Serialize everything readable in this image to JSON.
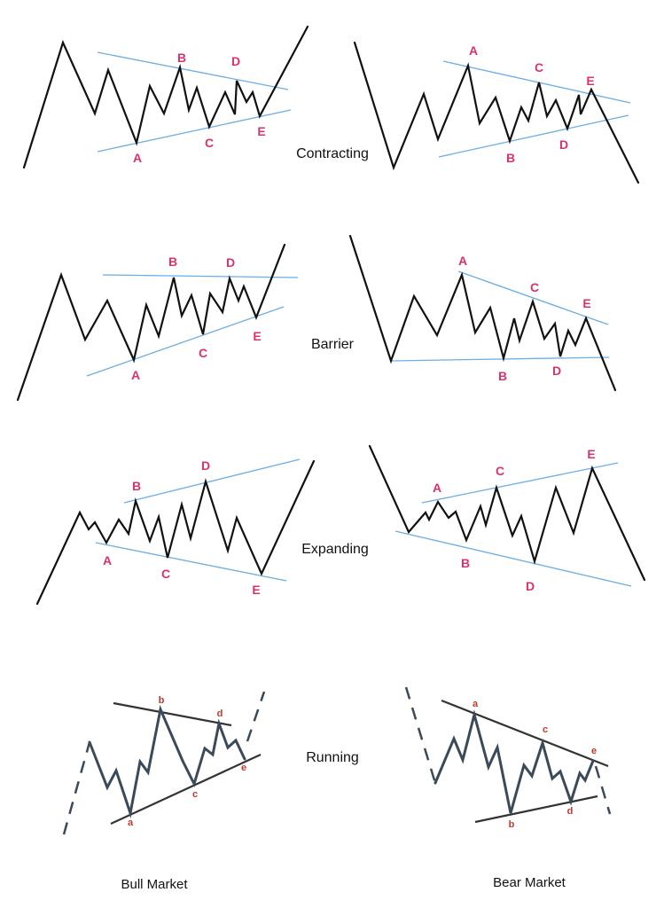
{
  "rows": [
    {
      "title": "Contracting",
      "left": {
        "labels": [
          "A",
          "B",
          "C",
          "D",
          "E"
        ]
      },
      "right": {
        "labels": [
          "A",
          "B",
          "C",
          "D",
          "E"
        ]
      }
    },
    {
      "title": "Barrier",
      "left": {
        "labels": [
          "A",
          "B",
          "C",
          "D",
          "E"
        ]
      },
      "right": {
        "labels": [
          "A",
          "B",
          "C",
          "D",
          "E"
        ]
      }
    },
    {
      "title": "Expanding",
      "left": {
        "labels": [
          "A",
          "B",
          "C",
          "D",
          "E"
        ]
      },
      "right": {
        "labels": [
          "A",
          "B",
          "C",
          "D",
          "E"
        ]
      }
    },
    {
      "title": "Running",
      "left": {
        "labels": [
          "a",
          "b",
          "c",
          "d",
          "e"
        ]
      },
      "right": {
        "labels": [
          "a",
          "b",
          "c",
          "d",
          "e"
        ]
      }
    }
  ],
  "captions": {
    "left": "Bull Market",
    "right": "Bear Market"
  },
  "colors": {
    "wave": "#111111",
    "guide": "#6aaee6",
    "label": "#d9336b",
    "running_wave": "#3a4a58",
    "running_label": "#c0392b"
  }
}
